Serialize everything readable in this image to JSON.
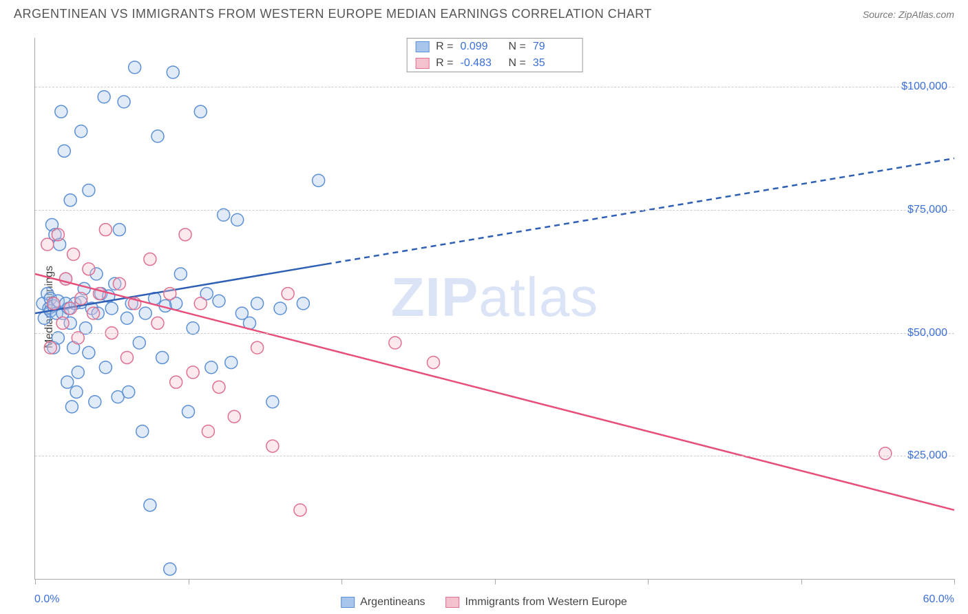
{
  "header": {
    "title": "ARGENTINEAN VS IMMIGRANTS FROM WESTERN EUROPE MEDIAN EARNINGS CORRELATION CHART",
    "source_prefix": "Source: ",
    "source": "ZipAtlas.com"
  },
  "watermark": {
    "bold": "ZIP",
    "rest": "atlas"
  },
  "chart": {
    "type": "scatter",
    "background_color": "#ffffff",
    "grid_color": "#cccccc",
    "axis_color": "#aaaaaa",
    "xlim": [
      0,
      60
    ],
    "ylim": [
      0,
      110000
    ],
    "y_ticks": [
      25000,
      50000,
      75000,
      100000
    ],
    "y_tick_labels": [
      "$25,000",
      "$50,000",
      "$75,000",
      "$100,000"
    ],
    "x_major_ticks": [
      0,
      10,
      20,
      30,
      40,
      50,
      60
    ],
    "x_tick_labels": {
      "left": "0.0%",
      "right": "60.0%"
    },
    "y_axis_title": "Median Earnings",
    "y_label_fontsize": 16,
    "tick_label_color": "#3b6fd8",
    "marker_radius": 9,
    "marker_stroke_width": 1.5,
    "marker_fill_opacity": 0.35,
    "series": [
      {
        "key": "argentineans",
        "label": "Argentineans",
        "color_fill": "#a8c6ec",
        "color_stroke": "#5b8fd6",
        "r_value": "0.099",
        "n_value": "79",
        "regression": {
          "solid": {
            "x1": 0,
            "y1": 54000,
            "x2": 19,
            "y2": 64000
          },
          "dashed": {
            "x1": 19,
            "y1": 64000,
            "x2": 60,
            "y2": 85500
          },
          "color": "#2e5fb5",
          "width": 2.5,
          "dash": "8 6"
        },
        "points": [
          [
            0.5,
            56000
          ],
          [
            0.6,
            53000
          ],
          [
            0.8,
            58000
          ],
          [
            0.9,
            55000
          ],
          [
            1.0,
            54500
          ],
          [
            1.0,
            57000
          ],
          [
            1.1,
            72000
          ],
          [
            1.2,
            55500
          ],
          [
            1.2,
            47000
          ],
          [
            1.3,
            70000
          ],
          [
            1.4,
            54000
          ],
          [
            1.5,
            56500
          ],
          [
            1.5,
            49000
          ],
          [
            1.6,
            68000
          ],
          [
            1.7,
            95000
          ],
          [
            1.8,
            54000
          ],
          [
            1.9,
            87000
          ],
          [
            2.0,
            56000
          ],
          [
            2.0,
            61000
          ],
          [
            2.1,
            40000
          ],
          [
            2.2,
            55000
          ],
          [
            2.3,
            52000
          ],
          [
            2.3,
            77000
          ],
          [
            2.4,
            35000
          ],
          [
            2.5,
            47000
          ],
          [
            2.6,
            56000
          ],
          [
            2.7,
            38000
          ],
          [
            2.8,
            42000
          ],
          [
            3.0,
            91000
          ],
          [
            3.0,
            56200
          ],
          [
            3.2,
            59000
          ],
          [
            3.3,
            51000
          ],
          [
            3.5,
            79000
          ],
          [
            3.5,
            46000
          ],
          [
            3.7,
            55000
          ],
          [
            3.9,
            36000
          ],
          [
            4.0,
            62000
          ],
          [
            4.1,
            54000
          ],
          [
            4.3,
            58000
          ],
          [
            4.5,
            98000
          ],
          [
            4.6,
            43000
          ],
          [
            4.8,
            57500
          ],
          [
            5.0,
            55000
          ],
          [
            5.2,
            60000
          ],
          [
            5.4,
            37000
          ],
          [
            5.5,
            71000
          ],
          [
            5.8,
            97000
          ],
          [
            6.0,
            53000
          ],
          [
            6.1,
            38000
          ],
          [
            6.3,
            56000
          ],
          [
            6.5,
            104000
          ],
          [
            6.8,
            48000
          ],
          [
            7.0,
            30000
          ],
          [
            7.2,
            54000
          ],
          [
            7.5,
            15000
          ],
          [
            7.8,
            57000
          ],
          [
            8.0,
            90000
          ],
          [
            8.3,
            45000
          ],
          [
            8.5,
            55500
          ],
          [
            8.8,
            2000
          ],
          [
            9.0,
            103000
          ],
          [
            9.2,
            56000
          ],
          [
            9.5,
            62000
          ],
          [
            10.0,
            34000
          ],
          [
            10.3,
            51000
          ],
          [
            10.8,
            95000
          ],
          [
            11.2,
            58000
          ],
          [
            11.5,
            43000
          ],
          [
            12.0,
            56500
          ],
          [
            12.3,
            74000
          ],
          [
            12.8,
            44000
          ],
          [
            13.2,
            73000
          ],
          [
            13.5,
            54000
          ],
          [
            14.0,
            52000
          ],
          [
            14.5,
            56000
          ],
          [
            15.5,
            36000
          ],
          [
            16.0,
            55000
          ],
          [
            17.5,
            56000
          ],
          [
            18.5,
            81000
          ]
        ]
      },
      {
        "key": "western_europe",
        "label": "Immigrants from Western Europe",
        "color_fill": "#f4c1ce",
        "color_stroke": "#e0708f",
        "r_value": "-0.483",
        "n_value": "35",
        "regression": {
          "solid": {
            "x1": 0,
            "y1": 62000,
            "x2": 60,
            "y2": 14000
          },
          "dashed": null,
          "color": "#e74e79",
          "width": 2.5,
          "dash": null
        },
        "points": [
          [
            0.8,
            68000
          ],
          [
            1.0,
            47000
          ],
          [
            1.2,
            56000
          ],
          [
            1.5,
            70000
          ],
          [
            1.8,
            52000
          ],
          [
            2.0,
            61000
          ],
          [
            2.3,
            55000
          ],
          [
            2.5,
            66000
          ],
          [
            2.8,
            49000
          ],
          [
            3.0,
            57000
          ],
          [
            3.5,
            63000
          ],
          [
            3.8,
            54000
          ],
          [
            4.2,
            58000
          ],
          [
            4.6,
            71000
          ],
          [
            5.0,
            50000
          ],
          [
            5.5,
            60000
          ],
          [
            6.0,
            45000
          ],
          [
            6.5,
            56000
          ],
          [
            7.5,
            65000
          ],
          [
            8.0,
            52000
          ],
          [
            8.8,
            58000
          ],
          [
            9.2,
            40000
          ],
          [
            9.8,
            70000
          ],
          [
            10.3,
            42000
          ],
          [
            10.8,
            56000
          ],
          [
            11.3,
            30000
          ],
          [
            12.0,
            39000
          ],
          [
            13.0,
            33000
          ],
          [
            14.5,
            47000
          ],
          [
            15.5,
            27000
          ],
          [
            16.5,
            58000
          ],
          [
            17.3,
            14000
          ],
          [
            23.5,
            48000
          ],
          [
            26.0,
            44000
          ],
          [
            55.5,
            25500
          ]
        ]
      }
    ],
    "legend_top": {
      "r_label": "R =",
      "n_label": "N ="
    }
  }
}
